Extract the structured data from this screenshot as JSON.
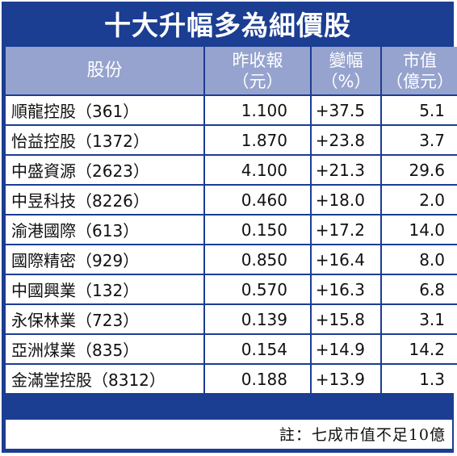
{
  "title": "十大升幅多為細價股",
  "headers": {
    "name": "股份",
    "close_line1": "昨收報",
    "close_line2": "（元）",
    "change_line1": "變幅",
    "change_line2": "（%）",
    "cap_line1": "市值",
    "cap_line2": "（億元）"
  },
  "rows": [
    {
      "name": "順龍控股（361）",
      "close": "1.100",
      "change": "+37.5",
      "cap": "5.1"
    },
    {
      "name": "怡益控股（1372）",
      "close": "1.870",
      "change": "+23.8",
      "cap": "3.7"
    },
    {
      "name": "中盛資源（2623）",
      "close": "4.100",
      "change": "+21.3",
      "cap": "29.6"
    },
    {
      "name": "中昱科技（8226）",
      "close": "0.460",
      "change": "+18.0",
      "cap": "2.0"
    },
    {
      "name": "渝港國際（613）",
      "close": "0.150",
      "change": "+17.2",
      "cap": "14.0"
    },
    {
      "name": "國際精密（929）",
      "close": "0.850",
      "change": "+16.4",
      "cap": "8.0"
    },
    {
      "name": "中國興業（132）",
      "close": "0.570",
      "change": "+16.3",
      "cap": "6.8"
    },
    {
      "name": "永保林業（723）",
      "close": "0.139",
      "change": "+15.8",
      "cap": "3.1"
    },
    {
      "name": "亞洲煤業（835）",
      "close": "0.154",
      "change": "+14.9",
      "cap": "14.2"
    },
    {
      "name": "金滿堂控股（8312）",
      "close": "0.188",
      "change": "+13.9",
      "cap": "1.3"
    }
  ],
  "note": "註：七成市值不足10億",
  "colors": {
    "frame": "#1b3d92",
    "header_bg": "#96a3ce",
    "header_text": "#ffffff",
    "body_bg": "#ffffff"
  }
}
